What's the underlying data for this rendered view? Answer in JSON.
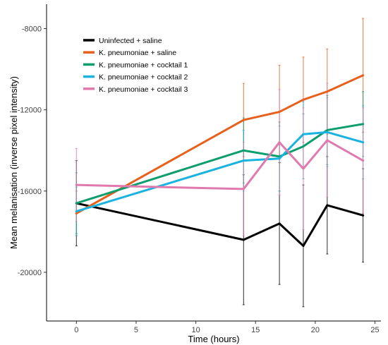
{
  "chart_data": {
    "type": "line",
    "title": "",
    "xlabel": "Time (hours)",
    "ylabel": "Mean melanisation (inverse pixel intensity)",
    "xlim": [
      -2.5,
      25.5
    ],
    "ylim": [
      -22400,
      -6800
    ],
    "x_ticks": [
      0,
      5,
      10,
      15,
      20,
      25
    ],
    "y_ticks": [
      -20000,
      -16000,
      -12000,
      -8000
    ],
    "grid": false,
    "legend_position": "top-left",
    "series": [
      {
        "name": "Uninfected + saline",
        "color": "#000000",
        "x": [
          0,
          14,
          17,
          19,
          21,
          24
        ],
        "y": [
          -16600,
          -18400,
          -17600,
          -18700,
          -16700,
          -17200
        ],
        "err": [
          2100,
          3200,
          3000,
          3000,
          2400,
          2300
        ]
      },
      {
        "name": "K. pneumoniae + saline",
        "color": "#E8601C",
        "x": [
          0,
          14,
          17,
          19,
          21,
          24
        ],
        "y": [
          -17100,
          -12500,
          -12100,
          -11500,
          -11100,
          -10300
        ],
        "err": [
          1100,
          1800,
          2300,
          2100,
          2100,
          2800
        ]
      },
      {
        "name": "K. pneumoniae + cocktail 1",
        "color": "#0E9D6E",
        "x": [
          0,
          14,
          17,
          19,
          21,
          24
        ],
        "y": [
          -16600,
          -14000,
          -14300,
          -13800,
          -13000,
          -12700
        ],
        "err": [
          1500,
          1600,
          1700,
          1600,
          1700,
          1600
        ]
      },
      {
        "name": "K. pneumoniae + cocktail 2",
        "color": "#1AB3E0",
        "x": [
          0,
          14,
          17,
          19,
          21,
          24
        ],
        "y": [
          -17000,
          -14500,
          -14400,
          -13200,
          -13100,
          -13600
        ],
        "err": [
          1200,
          1500,
          1600,
          1600,
          1700,
          1800
        ]
      },
      {
        "name": "K. pneumoniae + cocktail 3",
        "color": "#E07AAE",
        "x": [
          0,
          14,
          17,
          19,
          21,
          24
        ],
        "y": [
          -15700,
          -15900,
          -13600,
          -14900,
          -13500,
          -14500
        ],
        "err": [
          1800,
          2300,
          2600,
          3000,
          2800,
          2600
        ]
      }
    ]
  }
}
